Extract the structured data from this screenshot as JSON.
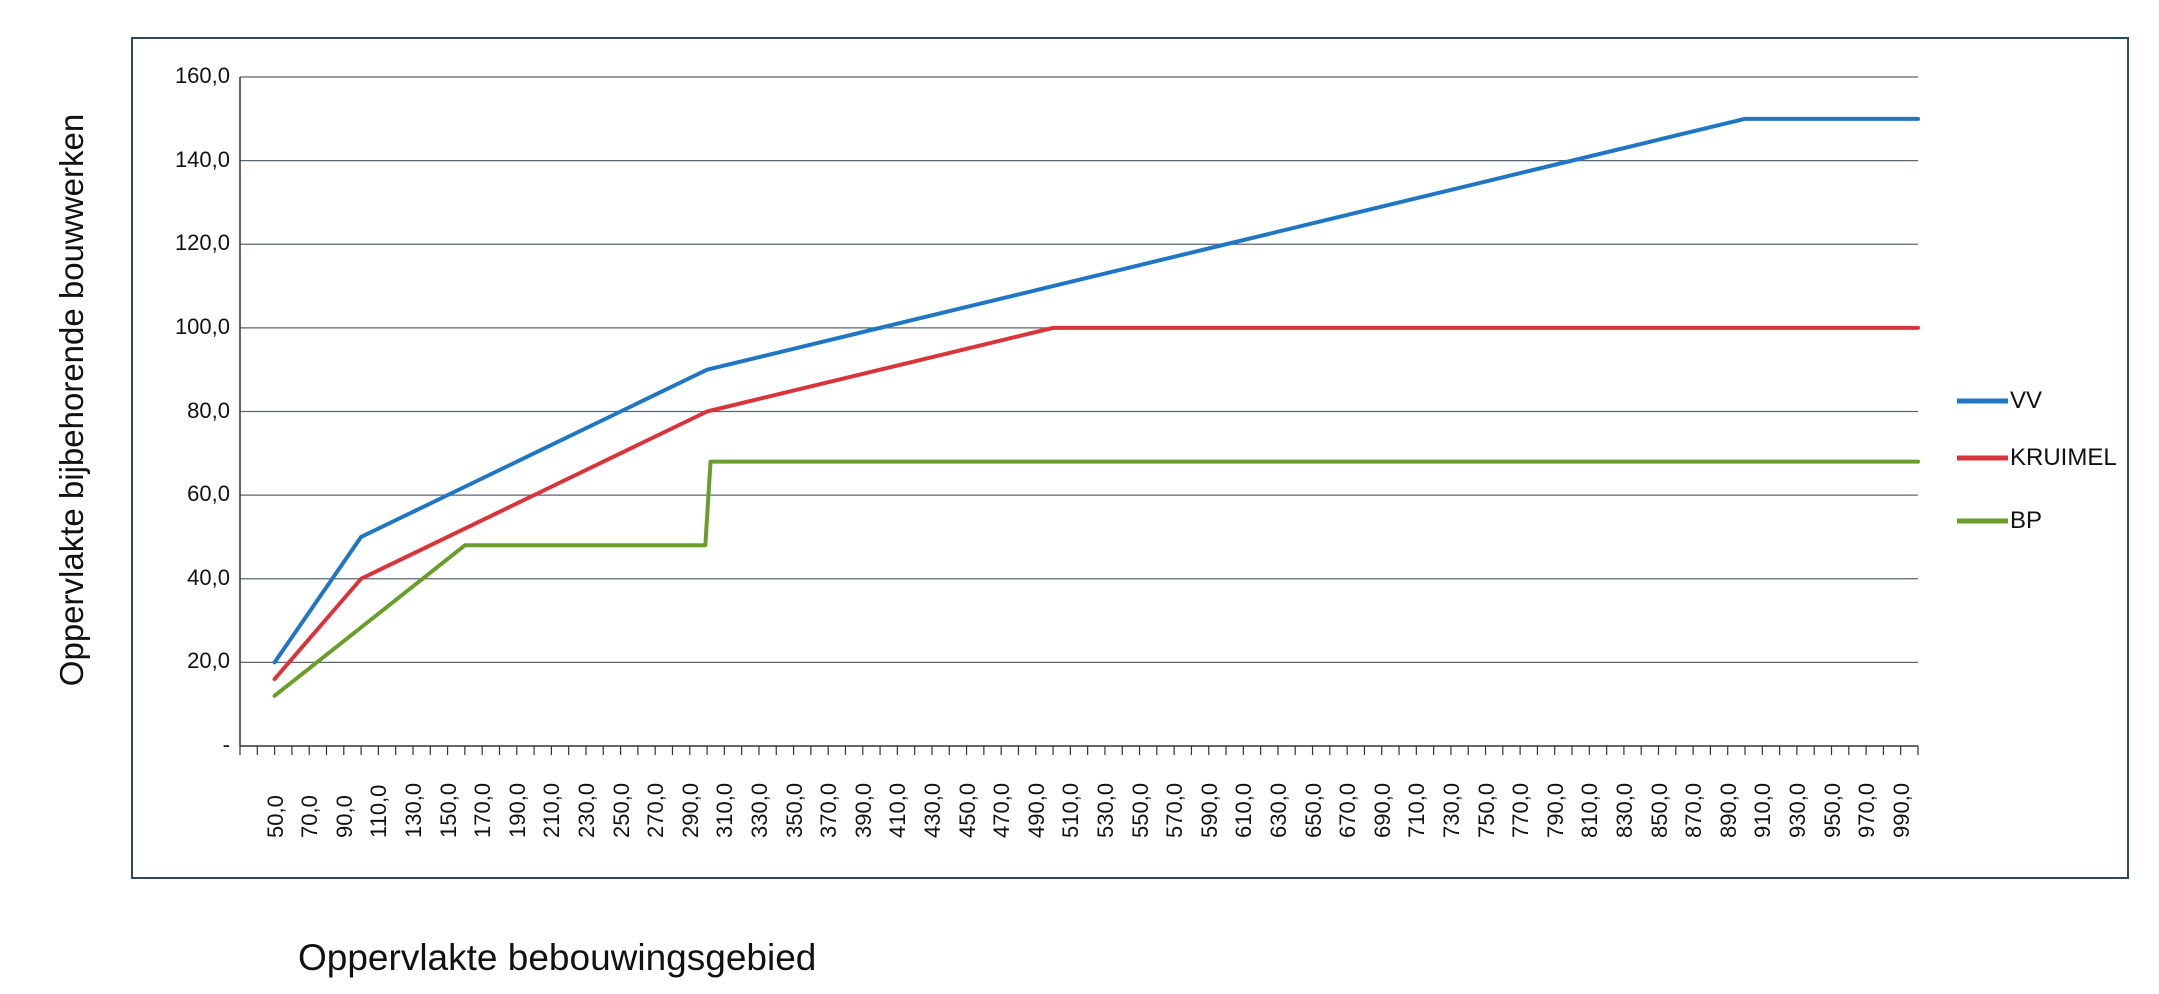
{
  "chart_data": {
    "type": "line",
    "xlabel": "Oppervlakte bebouwingsgebied",
    "ylabel": "Oppervlakte bijbehorende bouwwerken",
    "ylim": [
      0,
      160
    ],
    "yticks": [
      "-",
      "20,0",
      "40,0",
      "60,0",
      "80,0",
      "100,0",
      "120,0",
      "140,0",
      "160,0"
    ],
    "xlim": [
      30,
      1000
    ],
    "xticks": [
      "50,0",
      "70,0",
      "90,0",
      "110,0",
      "130,0",
      "150,0",
      "170,0",
      "190,0",
      "210,0",
      "230,0",
      "250,0",
      "270,0",
      "290,0",
      "310,0",
      "330,0",
      "350,0",
      "370,0",
      "390,0",
      "410,0",
      "430,0",
      "450,0",
      "470,0",
      "490,0",
      "510,0",
      "530,0",
      "550,0",
      "570,0",
      "590,0",
      "610,0",
      "630,0",
      "650,0",
      "670,0",
      "690,0",
      "710,0",
      "730,0",
      "750,0",
      "770,0",
      "790,0",
      "810,0",
      "830,0",
      "850,0",
      "870,0",
      "890,0",
      "910,0",
      "930,0",
      "950,0",
      "970,0",
      "990,0"
    ],
    "grid": true,
    "legend": "right",
    "series": [
      {
        "name": "VV",
        "color": "#1f77c4",
        "x": [
          50,
          100,
          150,
          200,
          250,
          300,
          350,
          400,
          450,
          500,
          550,
          600,
          650,
          700,
          750,
          800,
          850,
          900,
          1000
        ],
        "y": [
          20,
          50,
          60,
          70,
          80,
          90,
          95,
          100,
          105,
          110,
          115,
          120,
          125,
          130,
          135,
          140,
          145,
          150,
          150
        ]
      },
      {
        "name": "KRUIMEL",
        "color": "#d9343a",
        "x": [
          50,
          100,
          150,
          200,
          250,
          300,
          350,
          400,
          450,
          500,
          1000
        ],
        "y": [
          16,
          40,
          50,
          60,
          70,
          80,
          85,
          90,
          95,
          100,
          100
        ]
      },
      {
        "name": "BP",
        "color": "#6a9e2a",
        "x": [
          50,
          160,
          299,
          302,
          1000
        ],
        "y": [
          12,
          48,
          48,
          68,
          68
        ]
      }
    ]
  }
}
